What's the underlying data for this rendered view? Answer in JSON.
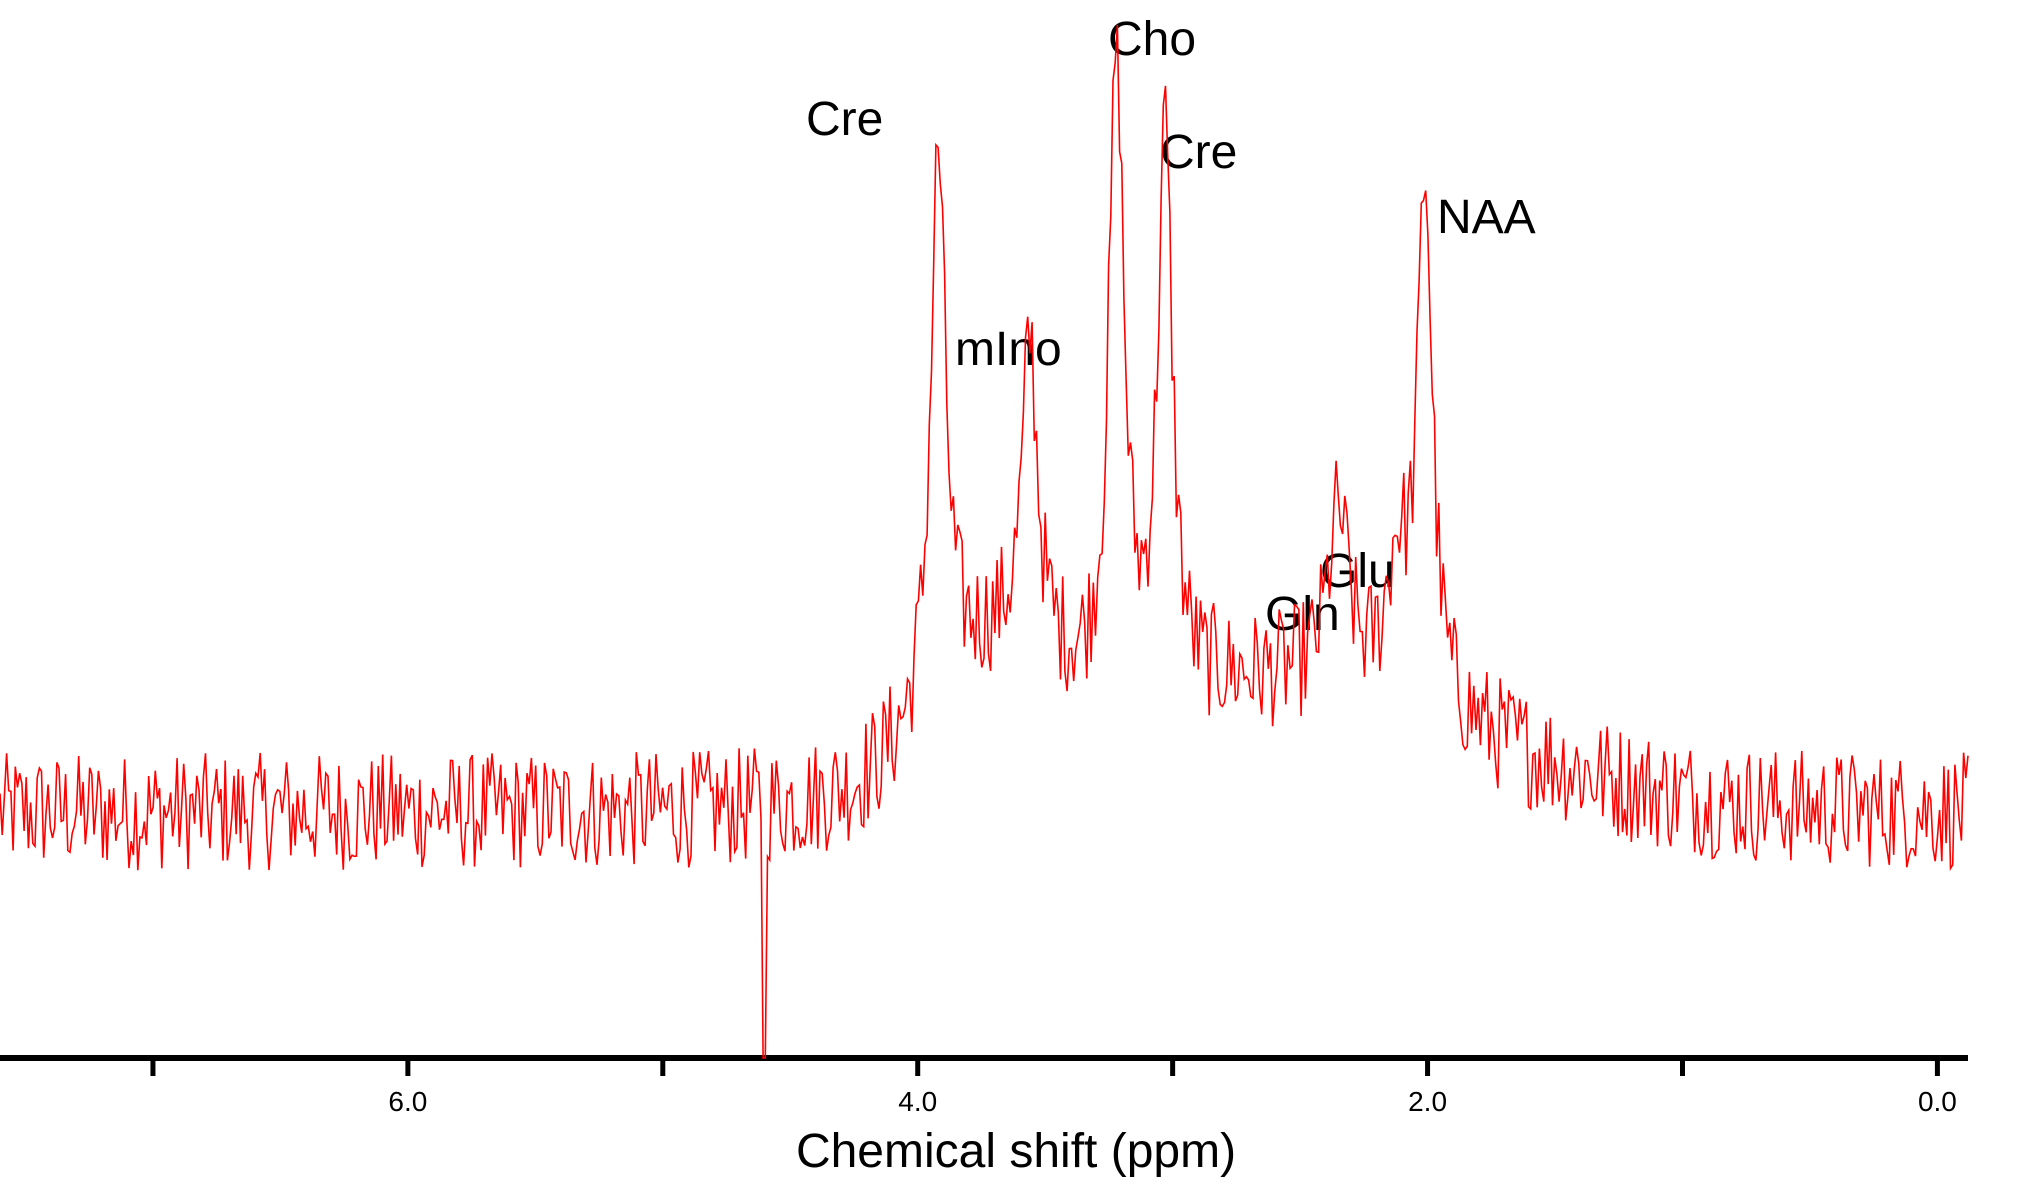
{
  "chart_data": {
    "type": "line",
    "title": "",
    "xlabel": "Chemical shift (ppm)",
    "ylabel": "",
    "x_axis_reversed": true,
    "xlim": [
      7.6,
      -0.12
    ],
    "ylim": [
      -0.05,
      1.0
    ],
    "grid": false,
    "legend": "none",
    "line_color": "#ff0000",
    "x_ticks": [
      {
        "value": 7.0,
        "label": ""
      },
      {
        "value": 6.0,
        "label": "6.0"
      },
      {
        "value": 5.0,
        "label": ""
      },
      {
        "value": 4.0,
        "label": "4.0"
      },
      {
        "value": 3.0,
        "label": ""
      },
      {
        "value": 2.0,
        "label": "2.0"
      },
      {
        "value": 1.0,
        "label": ""
      },
      {
        "value": 0.0,
        "label": "0.0"
      }
    ],
    "peaks": [
      {
        "name": "Cre",
        "ppm": 3.92,
        "height": 0.91
      },
      {
        "name": "mIno",
        "ppm": 3.56,
        "height": 0.66
      },
      {
        "name": "Cho",
        "ppm": 3.22,
        "height": 1.0
      },
      {
        "name": "Cre",
        "ppm": 3.03,
        "height": 0.91
      },
      {
        "name": "Glu",
        "ppm": 2.35,
        "height": 0.52
      },
      {
        "name": "Gln",
        "ppm": 2.12,
        "height": 0.48
      },
      {
        "name": "NAA",
        "ppm": 2.01,
        "height": 0.88
      }
    ],
    "baseline_level": 0.2,
    "noise_amplitude": 0.06
  },
  "labels": [
    {
      "id": "cre1",
      "text": "Cre"
    },
    {
      "id": "mino",
      "text": "mIno"
    },
    {
      "id": "cho",
      "text": "Cho"
    },
    {
      "id": "cre2",
      "text": "Cre"
    },
    {
      "id": "naa",
      "text": "NAA"
    },
    {
      "id": "glu",
      "text": "Glu"
    },
    {
      "id": "gln",
      "text": "Gln"
    }
  ]
}
